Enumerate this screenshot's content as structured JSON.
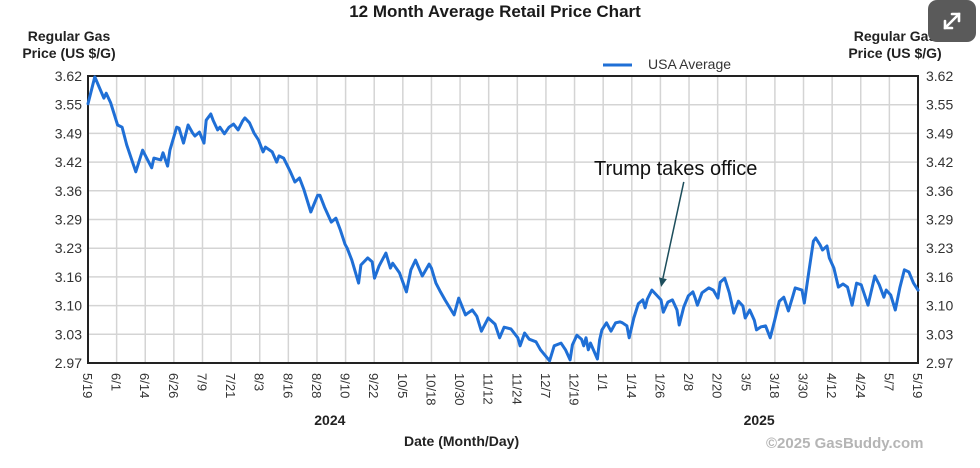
{
  "chart_data": {
    "type": "line",
    "title": "12 Month Average Retail Price Chart",
    "ylabel_left": "Regular Gas Price (US $/G)",
    "ylabel_right": "Regular Gas Price (US $/G)",
    "ylabel_lines": [
      "Regular Gas",
      "Price (US $/G)"
    ],
    "xlabel": "Date (Month/Day)",
    "ylim": [
      2.97,
      3.62
    ],
    "yticks": [
      "3.62",
      "3.55",
      "3.49",
      "3.42",
      "3.36",
      "3.29",
      "3.23",
      "3.16",
      "3.10",
      "3.03",
      "2.97"
    ],
    "x_range_days": [
      0,
      365
    ],
    "x_start_date": "5/19/2024",
    "xticks": [
      "5/19",
      "6/1",
      "6/14",
      "6/26",
      "7/9",
      "7/21",
      "8/3",
      "8/16",
      "8/28",
      "9/10",
      "9/22",
      "10/5",
      "10/18",
      "10/30",
      "11/12",
      "11/24",
      "12/7",
      "12/19",
      "1/1",
      "1/14",
      "1/26",
      "2/8",
      "2/20",
      "3/5",
      "3/18",
      "3/30",
      "4/12",
      "4/24",
      "5/7",
      "5/19"
    ],
    "year_labels": [
      {
        "label": "2024",
        "tick_index": 8.5
      },
      {
        "label": "2025",
        "tick_index": 23.5
      }
    ],
    "grid": true,
    "legend": {
      "position": "top-right",
      "entries": [
        "USA Average"
      ]
    },
    "series": [
      {
        "name": "USA Average",
        "color": "#1f6fd6",
        "days": [
          0,
          3,
          7,
          8,
          10,
          13,
          15,
          17,
          21,
          24,
          28,
          29,
          32,
          33,
          35,
          36,
          39,
          40,
          42,
          44,
          46,
          47,
          49,
          51,
          52,
          54,
          55,
          57,
          58,
          60,
          62,
          64,
          66,
          68,
          69,
          71,
          73,
          75,
          77,
          78,
          81,
          83,
          84,
          86,
          89,
          91,
          93,
          95,
          98,
          101,
          102,
          104,
          107,
          109,
          111,
          113,
          114,
          116,
          119,
          120,
          123,
          125,
          126,
          128,
          131,
          133,
          134,
          137,
          140,
          142,
          144,
          147,
          150,
          151,
          153,
          155,
          157,
          161,
          163,
          166,
          167,
          169,
          171,
          173,
          176,
          179,
          181,
          183,
          186,
          189,
          190,
          192,
          194,
          197,
          199,
          203,
          205,
          208,
          210,
          212,
          213,
          215,
          217,
          218,
          219,
          220,
          221,
          224,
          225,
          226,
          228,
          230,
          232,
          234,
          235,
          237,
          238,
          240,
          242,
          244,
          245,
          246,
          248,
          250,
          252,
          253,
          255,
          257,
          259,
          260,
          262,
          264,
          266,
          267,
          268,
          270,
          273,
          275,
          277,
          278,
          280,
          282,
          284,
          286,
          288,
          289,
          291,
          293,
          294,
          296,
          298,
          300,
          302,
          304,
          306,
          308,
          310,
          311,
          314,
          315,
          317,
          319,
          320,
          322,
          323,
          325,
          326,
          328,
          330,
          332,
          334,
          336,
          338,
          340,
          343,
          346,
          348,
          350,
          351,
          353,
          355,
          357,
          359,
          361,
          363,
          365
        ],
        "values": [
          3.557,
          3.618,
          3.57,
          3.581,
          3.559,
          3.509,
          3.504,
          3.464,
          3.403,
          3.452,
          3.412,
          3.434,
          3.43,
          3.446,
          3.416,
          3.452,
          3.504,
          3.502,
          3.468,
          3.509,
          3.491,
          3.484,
          3.493,
          3.468,
          3.52,
          3.534,
          3.52,
          3.498,
          3.504,
          3.489,
          3.504,
          3.511,
          3.498,
          3.518,
          3.525,
          3.514,
          3.491,
          3.475,
          3.448,
          3.459,
          3.448,
          3.425,
          3.439,
          3.434,
          3.403,
          3.38,
          3.389,
          3.362,
          3.312,
          3.35,
          3.35,
          3.323,
          3.289,
          3.298,
          3.271,
          3.239,
          3.23,
          3.203,
          3.151,
          3.192,
          3.208,
          3.199,
          3.162,
          3.19,
          3.219,
          3.185,
          3.196,
          3.174,
          3.131,
          3.181,
          3.203,
          3.167,
          3.194,
          3.185,
          3.151,
          3.131,
          3.113,
          3.079,
          3.117,
          3.079,
          3.083,
          3.09,
          3.076,
          3.042,
          3.072,
          3.058,
          3.027,
          3.051,
          3.047,
          3.027,
          3.009,
          3.038,
          3.024,
          3.018,
          3.0,
          2.975,
          3.009,
          3.015,
          3.0,
          2.977,
          3.011,
          3.033,
          3.024,
          3.009,
          3.027,
          3.0,
          3.015,
          2.979,
          3.022,
          3.045,
          3.061,
          3.042,
          3.061,
          3.063,
          3.061,
          3.054,
          3.027,
          3.072,
          3.104,
          3.113,
          3.095,
          3.115,
          3.135,
          3.124,
          3.113,
          3.085,
          3.108,
          3.113,
          3.09,
          3.056,
          3.097,
          3.122,
          3.131,
          3.117,
          3.101,
          3.129,
          3.14,
          3.135,
          3.117,
          3.153,
          3.162,
          3.129,
          3.083,
          3.11,
          3.099,
          3.072,
          3.09,
          3.067,
          3.045,
          3.052,
          3.054,
          3.027,
          3.067,
          3.11,
          3.119,
          3.088,
          3.122,
          3.14,
          3.135,
          3.106,
          3.176,
          3.246,
          3.253,
          3.237,
          3.226,
          3.235,
          3.208,
          3.185,
          3.142,
          3.149,
          3.142,
          3.101,
          3.151,
          3.147,
          3.101,
          3.167,
          3.147,
          3.119,
          3.135,
          3.124,
          3.09,
          3.14,
          3.181,
          3.176,
          3.151,
          3.135
        ]
      }
    ],
    "annotations": [
      {
        "text": "Trump takes office",
        "text_day": 236,
        "text_price": 3.43,
        "arrow_from_day": 262,
        "arrow_from_price": 3.38,
        "arrow_to_day": 252,
        "arrow_to_price": 3.142,
        "color": "#1d4e5c"
      }
    ],
    "watermark": "©2025 GasBuddy.com"
  },
  "ui": {
    "expand_button_icon": "expand-arrows-icon"
  }
}
